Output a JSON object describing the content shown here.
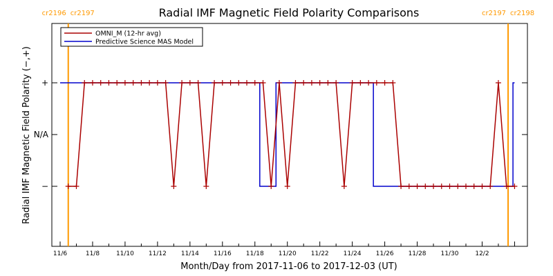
{
  "chart_data": {
    "type": "line",
    "title": "Radial IMF Magnetic Field Polarity Comparisons",
    "xlabel": "Month/Day from 2017-11-06 to 2017-12-03 (UT)",
    "ylabel": "Radial IMF Magnetic Field Polarity (−,+)",
    "x_range_days": [
      0,
      28
    ],
    "y_range": [
      -2,
      2
    ],
    "y_levels": [
      {
        "value": 1,
        "label": "+"
      },
      {
        "value": 0,
        "label": "N/A"
      },
      {
        "value": -1,
        "label": "−"
      }
    ],
    "x_ticks": [
      {
        "day": 0,
        "label": "11/6"
      },
      {
        "day": 2,
        "label": "11/8"
      },
      {
        "day": 4,
        "label": "11/10"
      },
      {
        "day": 6,
        "label": "11/12"
      },
      {
        "day": 8,
        "label": "11/14"
      },
      {
        "day": 10,
        "label": "11/16"
      },
      {
        "day": 12,
        "label": "11/18"
      },
      {
        "day": 14,
        "label": "11/20"
      },
      {
        "day": 16,
        "label": "11/22"
      },
      {
        "day": 18,
        "label": "11/24"
      },
      {
        "day": 20,
        "label": "11/26"
      },
      {
        "day": 22,
        "label": "11/28"
      },
      {
        "day": 24,
        "label": "11/30"
      },
      {
        "day": 26,
        "label": "12/2"
      }
    ],
    "carrington_markers": [
      {
        "day": 0.5,
        "left_label": "cr2196",
        "right_label": "cr2197"
      },
      {
        "day": 27.6,
        "left_label": "cr2197",
        "right_label": "cr2198"
      }
    ],
    "marker_color": "#FF9900",
    "series": [
      {
        "name": "OMNI_M (12-hr avg)",
        "color": "#AA0000",
        "marker": "plus",
        "step": false,
        "x_days": [
          0.5,
          1.0,
          1.5,
          2.0,
          2.5,
          3.0,
          3.5,
          4.0,
          4.5,
          5.0,
          5.5,
          6.0,
          6.5,
          7.0,
          7.5,
          8.0,
          8.5,
          9.0,
          9.5,
          10.0,
          10.5,
          11.0,
          11.5,
          12.0,
          12.5,
          13.0,
          13.5,
          14.0,
          14.5,
          15.0,
          15.5,
          16.0,
          16.5,
          17.0,
          17.5,
          18.0,
          18.5,
          19.0,
          19.5,
          20.0,
          20.5,
          21.0,
          21.5,
          22.0,
          22.5,
          23.0,
          23.5,
          24.0,
          24.5,
          25.0,
          25.5,
          26.0,
          26.5,
          27.0,
          27.5,
          28.0
        ],
        "values": [
          -1,
          -1,
          1,
          1,
          1,
          1,
          1,
          1,
          1,
          1,
          1,
          1,
          1,
          -1,
          1,
          1,
          1,
          -1,
          1,
          1,
          1,
          1,
          1,
          1,
          1,
          -1,
          1,
          -1,
          1,
          1,
          1,
          1,
          1,
          1,
          -1,
          1,
          1,
          1,
          1,
          1,
          1,
          -1,
          -1,
          -1,
          -1,
          -1,
          -1,
          -1,
          -1,
          -1,
          -1,
          -1,
          -1,
          1,
          -1,
          -1
        ]
      },
      {
        "name": "Predictive Science MAS Model",
        "color": "#0000CC",
        "step": true,
        "x_days": [
          0,
          12.3,
          13.3,
          19.3,
          27.6,
          27.9
        ],
        "values": [
          1,
          -1,
          1,
          -1,
          -1,
          1
        ]
      }
    ],
    "legend_position": "top-left",
    "grid": false
  }
}
